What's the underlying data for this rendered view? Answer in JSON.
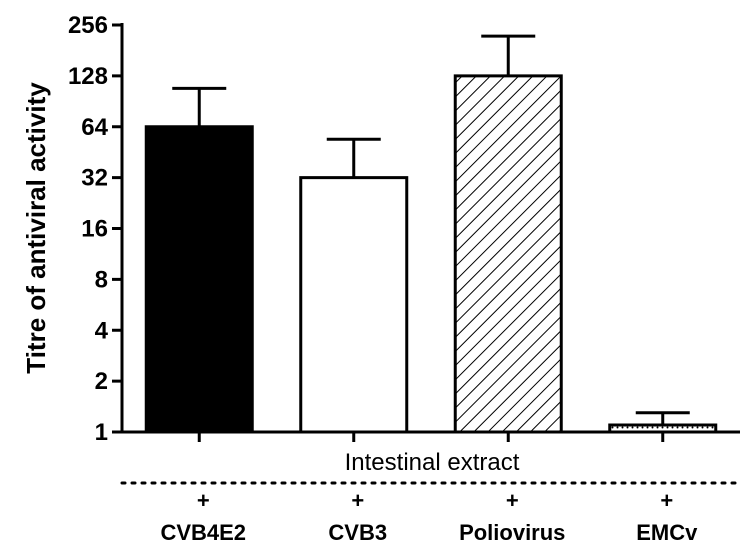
{
  "chart_data": {
    "type": "bar",
    "scale": "log2",
    "ylabel": "Titre of antiviral activity",
    "ylim": [
      1,
      256
    ],
    "yticks": [
      "1",
      "2",
      "4",
      "8",
      "16",
      "32",
      "64",
      "128",
      "256"
    ],
    "ytick_values": [
      1,
      2,
      4,
      8,
      16,
      32,
      64,
      128,
      256
    ],
    "categories": [
      "CVB4E2",
      "CVB3",
      "Poliovirus",
      "EMCv"
    ],
    "values": [
      64,
      32,
      128,
      1.1
    ],
    "error_upper": [
      108,
      54,
      220,
      1.3
    ],
    "fills": [
      "solid-black",
      "white",
      "diagonal-hatch",
      "dotted"
    ],
    "group_label": "Intestinal extract",
    "row_markers": [
      "+",
      "+",
      "+",
      "+"
    ],
    "grid": false,
    "legend": "none"
  }
}
